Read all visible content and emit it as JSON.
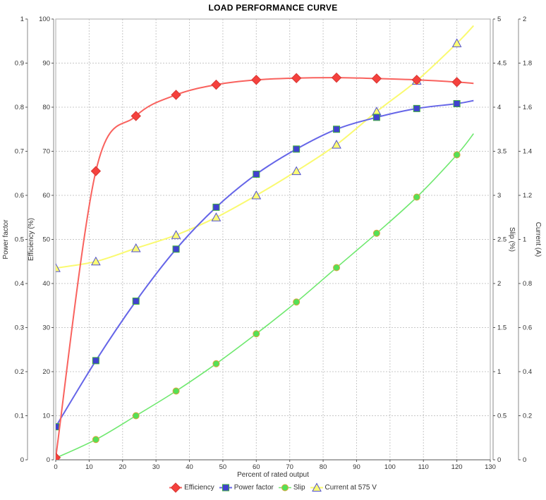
{
  "chart_data": {
    "type": "line",
    "title": "LOAD PERFORMANCE CURVE",
    "xlabel": "Percent of rated output",
    "grid": true,
    "legend_position": "bottom-center",
    "x_axis": {
      "min": 0,
      "max": 130,
      "step": 10
    },
    "x": [
      0,
      12,
      24,
      36,
      48,
      60,
      72,
      84,
      96,
      108,
      120
    ],
    "axes": [
      {
        "id": "pf",
        "title": "Power factor",
        "side": "left",
        "min": 0,
        "max": 1,
        "step": 0.1
      },
      {
        "id": "eff",
        "title": "Efficiency (%)",
        "side": "left",
        "min": 0,
        "max": 100,
        "step": 10
      },
      {
        "id": "slip",
        "title": "Slip (%)",
        "side": "right",
        "min": 0,
        "max": 5,
        "step": 0.5
      },
      {
        "id": "cur",
        "title": "Current (A)",
        "side": "right",
        "min": 0,
        "max": 2,
        "step": 0.2
      }
    ],
    "series": [
      {
        "name": "Efficiency",
        "axis": "eff",
        "marker": "diamond",
        "line_color": "#f9625e",
        "marker_fill": "#f5413d",
        "marker_stroke": "#d93734",
        "line_width": 2,
        "values": [
          0.5,
          65.5,
          78.0,
          82.8,
          85.1,
          86.2,
          86.6,
          86.7,
          86.5,
          86.2,
          85.7
        ],
        "line_end": {
          "x": 125,
          "y": 85.4
        }
      },
      {
        "name": "Power factor",
        "axis": "pf",
        "marker": "square",
        "line_color": "#6565e8",
        "marker_fill": "#4141cf",
        "marker_stroke": "#3fae3f",
        "line_width": 2,
        "values": [
          0.075,
          0.225,
          0.36,
          0.478,
          0.573,
          0.648,
          0.705,
          0.75,
          0.777,
          0.797,
          0.808
        ],
        "line_end": {
          "x": 125,
          "y": 0.815
        }
      },
      {
        "name": "Slip",
        "axis": "slip",
        "marker": "circle",
        "line_color": "#6ee86e",
        "marker_fill": "#55e055",
        "marker_stroke": "#dda43e",
        "line_width": 1.6,
        "values": [
          0.02,
          0.23,
          0.5,
          0.78,
          1.09,
          1.43,
          1.79,
          2.18,
          2.57,
          2.98,
          3.46
        ],
        "line_end": {
          "x": 125,
          "y": 3.7
        }
      },
      {
        "name": "Current at 575 V",
        "axis": "cur",
        "marker": "triangle",
        "line_color": "#fafa70",
        "marker_fill": "#fcfc74",
        "marker_stroke": "#5151ce",
        "line_width": 2,
        "values": [
          0.87,
          0.9,
          0.96,
          1.02,
          1.1,
          1.2,
          1.31,
          1.43,
          1.58,
          1.72,
          1.89
        ],
        "line_end": {
          "x": 125,
          "y": 1.97
        }
      }
    ],
    "colors": {
      "grid": "#c8c8c8",
      "border": "#a8a8a8",
      "axis_line": "#8a8a8a",
      "tick": "#555555",
      "background": "#ffffff"
    }
  }
}
